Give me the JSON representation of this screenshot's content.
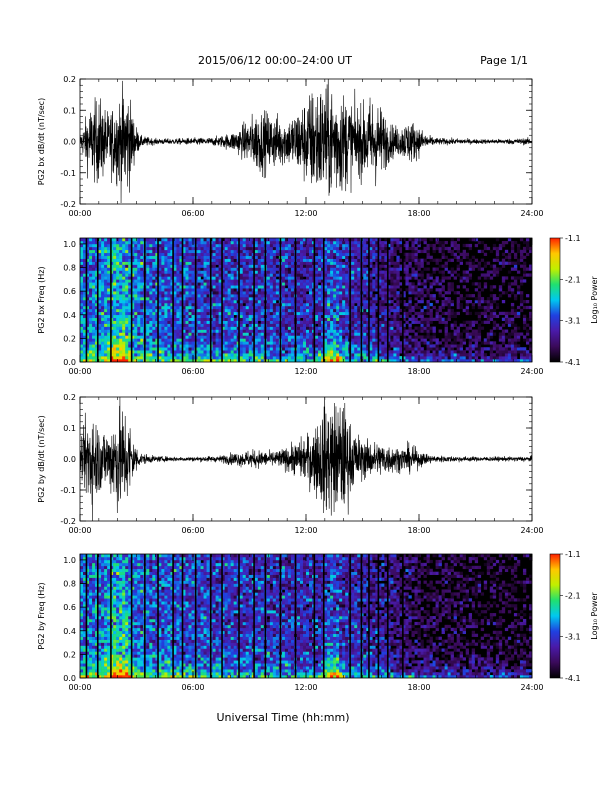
{
  "header": {
    "title": "2015/06/12  00:00–24:00 UT",
    "page": "Page 1/1"
  },
  "footer": {
    "xlabel": "Universal Time (hh:mm)"
  },
  "colors": {
    "trace": "#000000",
    "spectrogram_background": "#000000",
    "colormap": [
      "#000000",
      "#3a0a5a",
      "#4a1aa8",
      "#2040e0",
      "#00c8f0",
      "#20e070",
      "#c0f000",
      "#ffc800",
      "#ff2000"
    ]
  },
  "chart_data": [
    {
      "type": "line",
      "ylabel": "PG2 bx dB/dt (nT/sec)",
      "xlim": [
        0,
        24
      ],
      "ylim": [
        -0.2,
        0.2
      ],
      "x_ticks": [
        "00:00",
        "06:00",
        "12:00",
        "18:00",
        "24:00"
      ],
      "y_ticks": [
        "0.2",
        "0.1",
        "0.0",
        "-0.1",
        "-0.2"
      ],
      "amplitude_envelope": {
        "hours": [
          0,
          0.5,
          1,
          1.5,
          2,
          2.5,
          2.9,
          3.2,
          4,
          5,
          6,
          7,
          7.5,
          8,
          8.5,
          9,
          9.5,
          10,
          10.5,
          11,
          11.5,
          12,
          12.5,
          13,
          13.5,
          14,
          14.5,
          15,
          15.5,
          16,
          16.5,
          17,
          17.5,
          18,
          18.5,
          19,
          20,
          21,
          22,
          23,
          24
        ],
        "values": [
          0.02,
          0.12,
          0.15,
          0.1,
          0.15,
          0.2,
          0.07,
          0.02,
          0.01,
          0.01,
          0.012,
          0.014,
          0.02,
          0.03,
          0.05,
          0.08,
          0.11,
          0.1,
          0.09,
          0.08,
          0.11,
          0.15,
          0.2,
          0.2,
          0.2,
          0.17,
          0.13,
          0.12,
          0.16,
          0.12,
          0.06,
          0.05,
          0.08,
          0.05,
          0.02,
          0.012,
          0.01,
          0.008,
          0.008,
          0.01,
          0.012
        ]
      }
    },
    {
      "type": "heatmap",
      "ylabel": "PG2 bx Freq (Hz)",
      "colorbar_label": "Log₁₀ Power",
      "xlim": [
        0,
        24
      ],
      "ylim": [
        0,
        1.05
      ],
      "clim": [
        -4.1,
        -1.1
      ],
      "x_ticks": [
        "00:00",
        "06:00",
        "12:00",
        "18:00",
        "24:00"
      ],
      "y_ticks": [
        "1.0",
        "0.8",
        "0.6",
        "0.4",
        "0.2",
        "0.0"
      ],
      "colorbar_ticks": [
        "-1.1",
        "-2.1",
        "-3.1",
        "-4.1"
      ],
      "background_power": {
        "hours": [
          0,
          2,
          4,
          6,
          8,
          10,
          12,
          14,
          15,
          16,
          17,
          18,
          20,
          22,
          24
        ],
        "values": [
          -2.9,
          -2.8,
          -3.0,
          -3.1,
          -3.2,
          -3.2,
          -3.3,
          -3.3,
          -3.3,
          -3.5,
          -3.7,
          -3.9,
          -4.0,
          -4.05,
          -4.05
        ]
      },
      "bright_events_hours": [
        1.8,
        2.3,
        13.3,
        13.6
      ],
      "dark_gap_hours": [
        0.3,
        0.9,
        1.6,
        2.7,
        3.4,
        4.1,
        4.9,
        5.4,
        6.1,
        6.9,
        7.5,
        8.4,
        9.2,
        9.8,
        10.6,
        11.4,
        12.4,
        12.9,
        14.3,
        14.9,
        15.3,
        15.8,
        16.3,
        17.1
      ]
    },
    {
      "type": "line",
      "ylabel": "PG2 by dB/dt (nT/sec)",
      "xlim": [
        0,
        24
      ],
      "ylim": [
        -0.2,
        0.2
      ],
      "x_ticks": [
        "00:00",
        "06:00",
        "12:00",
        "18:00",
        "24:00"
      ],
      "y_ticks": [
        "0.2",
        "0.1",
        "0.0",
        "-0.1",
        "-0.2"
      ],
      "amplitude_envelope": {
        "hours": [
          0,
          0.5,
          1,
          1.5,
          2,
          2.5,
          2.9,
          3.2,
          4,
          5,
          6,
          7,
          7.5,
          8,
          8.5,
          9,
          9.5,
          10,
          10.5,
          11,
          11.5,
          12,
          12.5,
          13,
          13.5,
          14,
          14.5,
          15,
          15.5,
          16,
          16.5,
          17,
          17.5,
          18,
          18.5,
          19,
          20,
          21,
          22,
          23,
          24
        ],
        "values": [
          0.03,
          0.2,
          0.12,
          0.1,
          0.2,
          0.17,
          0.06,
          0.02,
          0.01,
          0.008,
          0.008,
          0.01,
          0.012,
          0.02,
          0.025,
          0.03,
          0.03,
          0.025,
          0.03,
          0.04,
          0.06,
          0.08,
          0.12,
          0.2,
          0.2,
          0.2,
          0.1,
          0.07,
          0.06,
          0.06,
          0.05,
          0.04,
          0.05,
          0.03,
          0.015,
          0.012,
          0.01,
          0.008,
          0.008,
          0.008,
          0.01
        ]
      }
    },
    {
      "type": "heatmap",
      "ylabel": "PG2 by Freq (Hz)",
      "colorbar_label": "Log₁₀ Power",
      "xlim": [
        0,
        24
      ],
      "ylim": [
        0,
        1.05
      ],
      "clim": [
        -4.1,
        -1.1
      ],
      "x_ticks": [
        "00:00",
        "06:00",
        "12:00",
        "18:00",
        "24:00"
      ],
      "y_ticks": [
        "1.0",
        "0.8",
        "0.6",
        "0.4",
        "0.2",
        "0.0"
      ],
      "colorbar_ticks": [
        "-1.1",
        "-2.1",
        "-3.1",
        "-4.1"
      ],
      "background_power": {
        "hours": [
          0,
          2,
          4,
          6,
          8,
          10,
          12,
          14,
          15,
          16,
          17,
          18,
          20,
          22,
          24
        ],
        "values": [
          -2.9,
          -2.8,
          -3.0,
          -3.1,
          -3.2,
          -3.25,
          -3.3,
          -3.35,
          -3.4,
          -3.5,
          -3.7,
          -3.9,
          -4.0,
          -4.05,
          -4.05
        ]
      },
      "bright_events_hours": [
        1.8,
        2.3,
        13.3,
        13.6
      ],
      "dark_gap_hours": [
        0.3,
        0.9,
        1.6,
        2.7,
        3.4,
        4.1,
        4.9,
        5.4,
        6.1,
        6.9,
        7.5,
        8.4,
        9.2,
        9.8,
        10.6,
        11.4,
        12.4,
        12.9,
        14.3,
        14.9,
        15.3,
        15.8,
        16.3,
        17.1
      ]
    }
  ]
}
